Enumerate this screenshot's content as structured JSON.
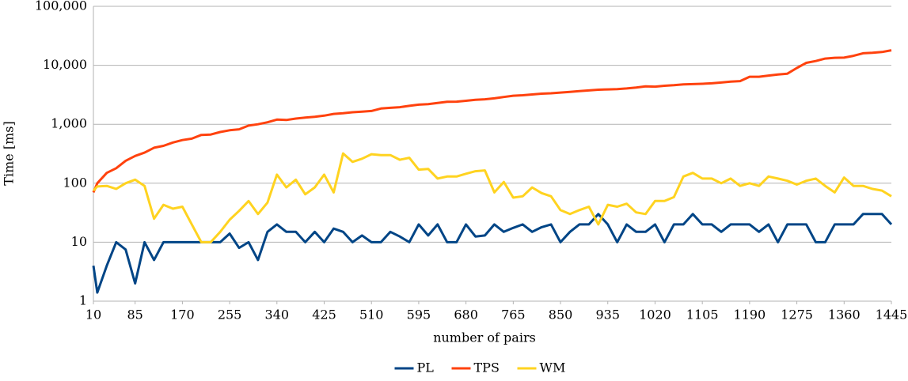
{
  "chart_data": {
    "type": "line",
    "y_label": "Time [ms]",
    "x_label": "number of pairs",
    "log_y": true,
    "grid": true,
    "legend": "bottom",
    "x": [
      10,
      17,
      34,
      51,
      68,
      85,
      102,
      119,
      136,
      153,
      170,
      187,
      204,
      221,
      238,
      255,
      272,
      289,
      306,
      323,
      340,
      357,
      374,
      391,
      408,
      425,
      442,
      459,
      476,
      493,
      510,
      527,
      544,
      561,
      578,
      595,
      612,
      629,
      646,
      663,
      680,
      697,
      714,
      731,
      748,
      765,
      782,
      799,
      816,
      833,
      850,
      867,
      884,
      901,
      918,
      935,
      952,
      969,
      986,
      1003,
      1020,
      1037,
      1054,
      1071,
      1088,
      1105,
      1122,
      1139,
      1156,
      1173,
      1190,
      1207,
      1224,
      1241,
      1258,
      1275,
      1292,
      1309,
      1326,
      1343,
      1360,
      1377,
      1394,
      1411,
      1428,
      1445
    ],
    "xlim": [
      10,
      1445
    ],
    "xticks": [
      10,
      85,
      170,
      255,
      340,
      425,
      510,
      595,
      680,
      765,
      850,
      935,
      1020,
      1105,
      1190,
      1275,
      1360,
      1445
    ],
    "ylim": [
      1,
      100000
    ],
    "yticks": [
      1,
      10,
      100,
      {
        "value": 1000,
        "label": "1,000"
      },
      {
        "value": 10000,
        "label": "10,000"
      },
      {
        "value": 100000,
        "label": "100,000"
      }
    ],
    "series": [
      {
        "name": "PL",
        "color": "#004586",
        "values": [
          4,
          1.4,
          4,
          10,
          7.5,
          2,
          10,
          5,
          10,
          10,
          10,
          10,
          10,
          10,
          10,
          14,
          8,
          10,
          5,
          15,
          20,
          15,
          15,
          10,
          15,
          10,
          17,
          15,
          10,
          13,
          10,
          10,
          15,
          12.5,
          10,
          20,
          13,
          20,
          10,
          10,
          20,
          12.5,
          13,
          20,
          15,
          17.5,
          20,
          15,
          18,
          20,
          10,
          15,
          20,
          20,
          30,
          20,
          10,
          20,
          15,
          15,
          20,
          10,
          20,
          20,
          30,
          20,
          20,
          15,
          20,
          20,
          20,
          15,
          20,
          10,
          20,
          20,
          20,
          10,
          10,
          20,
          20,
          20,
          30,
          30,
          30,
          20
        ]
      },
      {
        "name": "TPS",
        "color": "#ff420e",
        "values": [
          70,
          100,
          150,
          180,
          240,
          290,
          330,
          400,
          430,
          490,
          540,
          570,
          660,
          670,
          740,
          790,
          820,
          950,
          1000,
          1080,
          1200,
          1180,
          1250,
          1300,
          1340,
          1400,
          1500,
          1540,
          1600,
          1640,
          1680,
          1850,
          1900,
          1950,
          2050,
          2150,
          2200,
          2300,
          2400,
          2420,
          2500,
          2600,
          2650,
          2750,
          2900,
          3050,
          3100,
          3200,
          3300,
          3350,
          3450,
          3550,
          3650,
          3750,
          3850,
          3900,
          3950,
          4050,
          4200,
          4400,
          4350,
          4500,
          4600,
          4750,
          4800,
          4850,
          4950,
          5100,
          5300,
          5400,
          6400,
          6400,
          6700,
          7000,
          7200,
          9000,
          11000,
          11800,
          13000,
          13400,
          13500,
          14500,
          16000,
          16300,
          16800,
          18000
        ]
      },
      {
        "name": "WM",
        "color": "#ffd320",
        "values": [
          75,
          88,
          90,
          80,
          100,
          115,
          90,
          25,
          43,
          37,
          40,
          20,
          10,
          10,
          15,
          24,
          34,
          50,
          30,
          47,
          140,
          85,
          115,
          65,
          85,
          140,
          70,
          320,
          230,
          260,
          310,
          300,
          300,
          250,
          270,
          170,
          175,
          120,
          130,
          130,
          145,
          160,
          165,
          70,
          105,
          57,
          60,
          85,
          68,
          60,
          35,
          30,
          35,
          40,
          20,
          43,
          40,
          45,
          32,
          30,
          50,
          50,
          58,
          130,
          150,
          120,
          120,
          100,
          120,
          90,
          100,
          90,
          130,
          120,
          110,
          95,
          110,
          120,
          90,
          70,
          125,
          90,
          90,
          80,
          75,
          60
        ]
      }
    ]
  }
}
